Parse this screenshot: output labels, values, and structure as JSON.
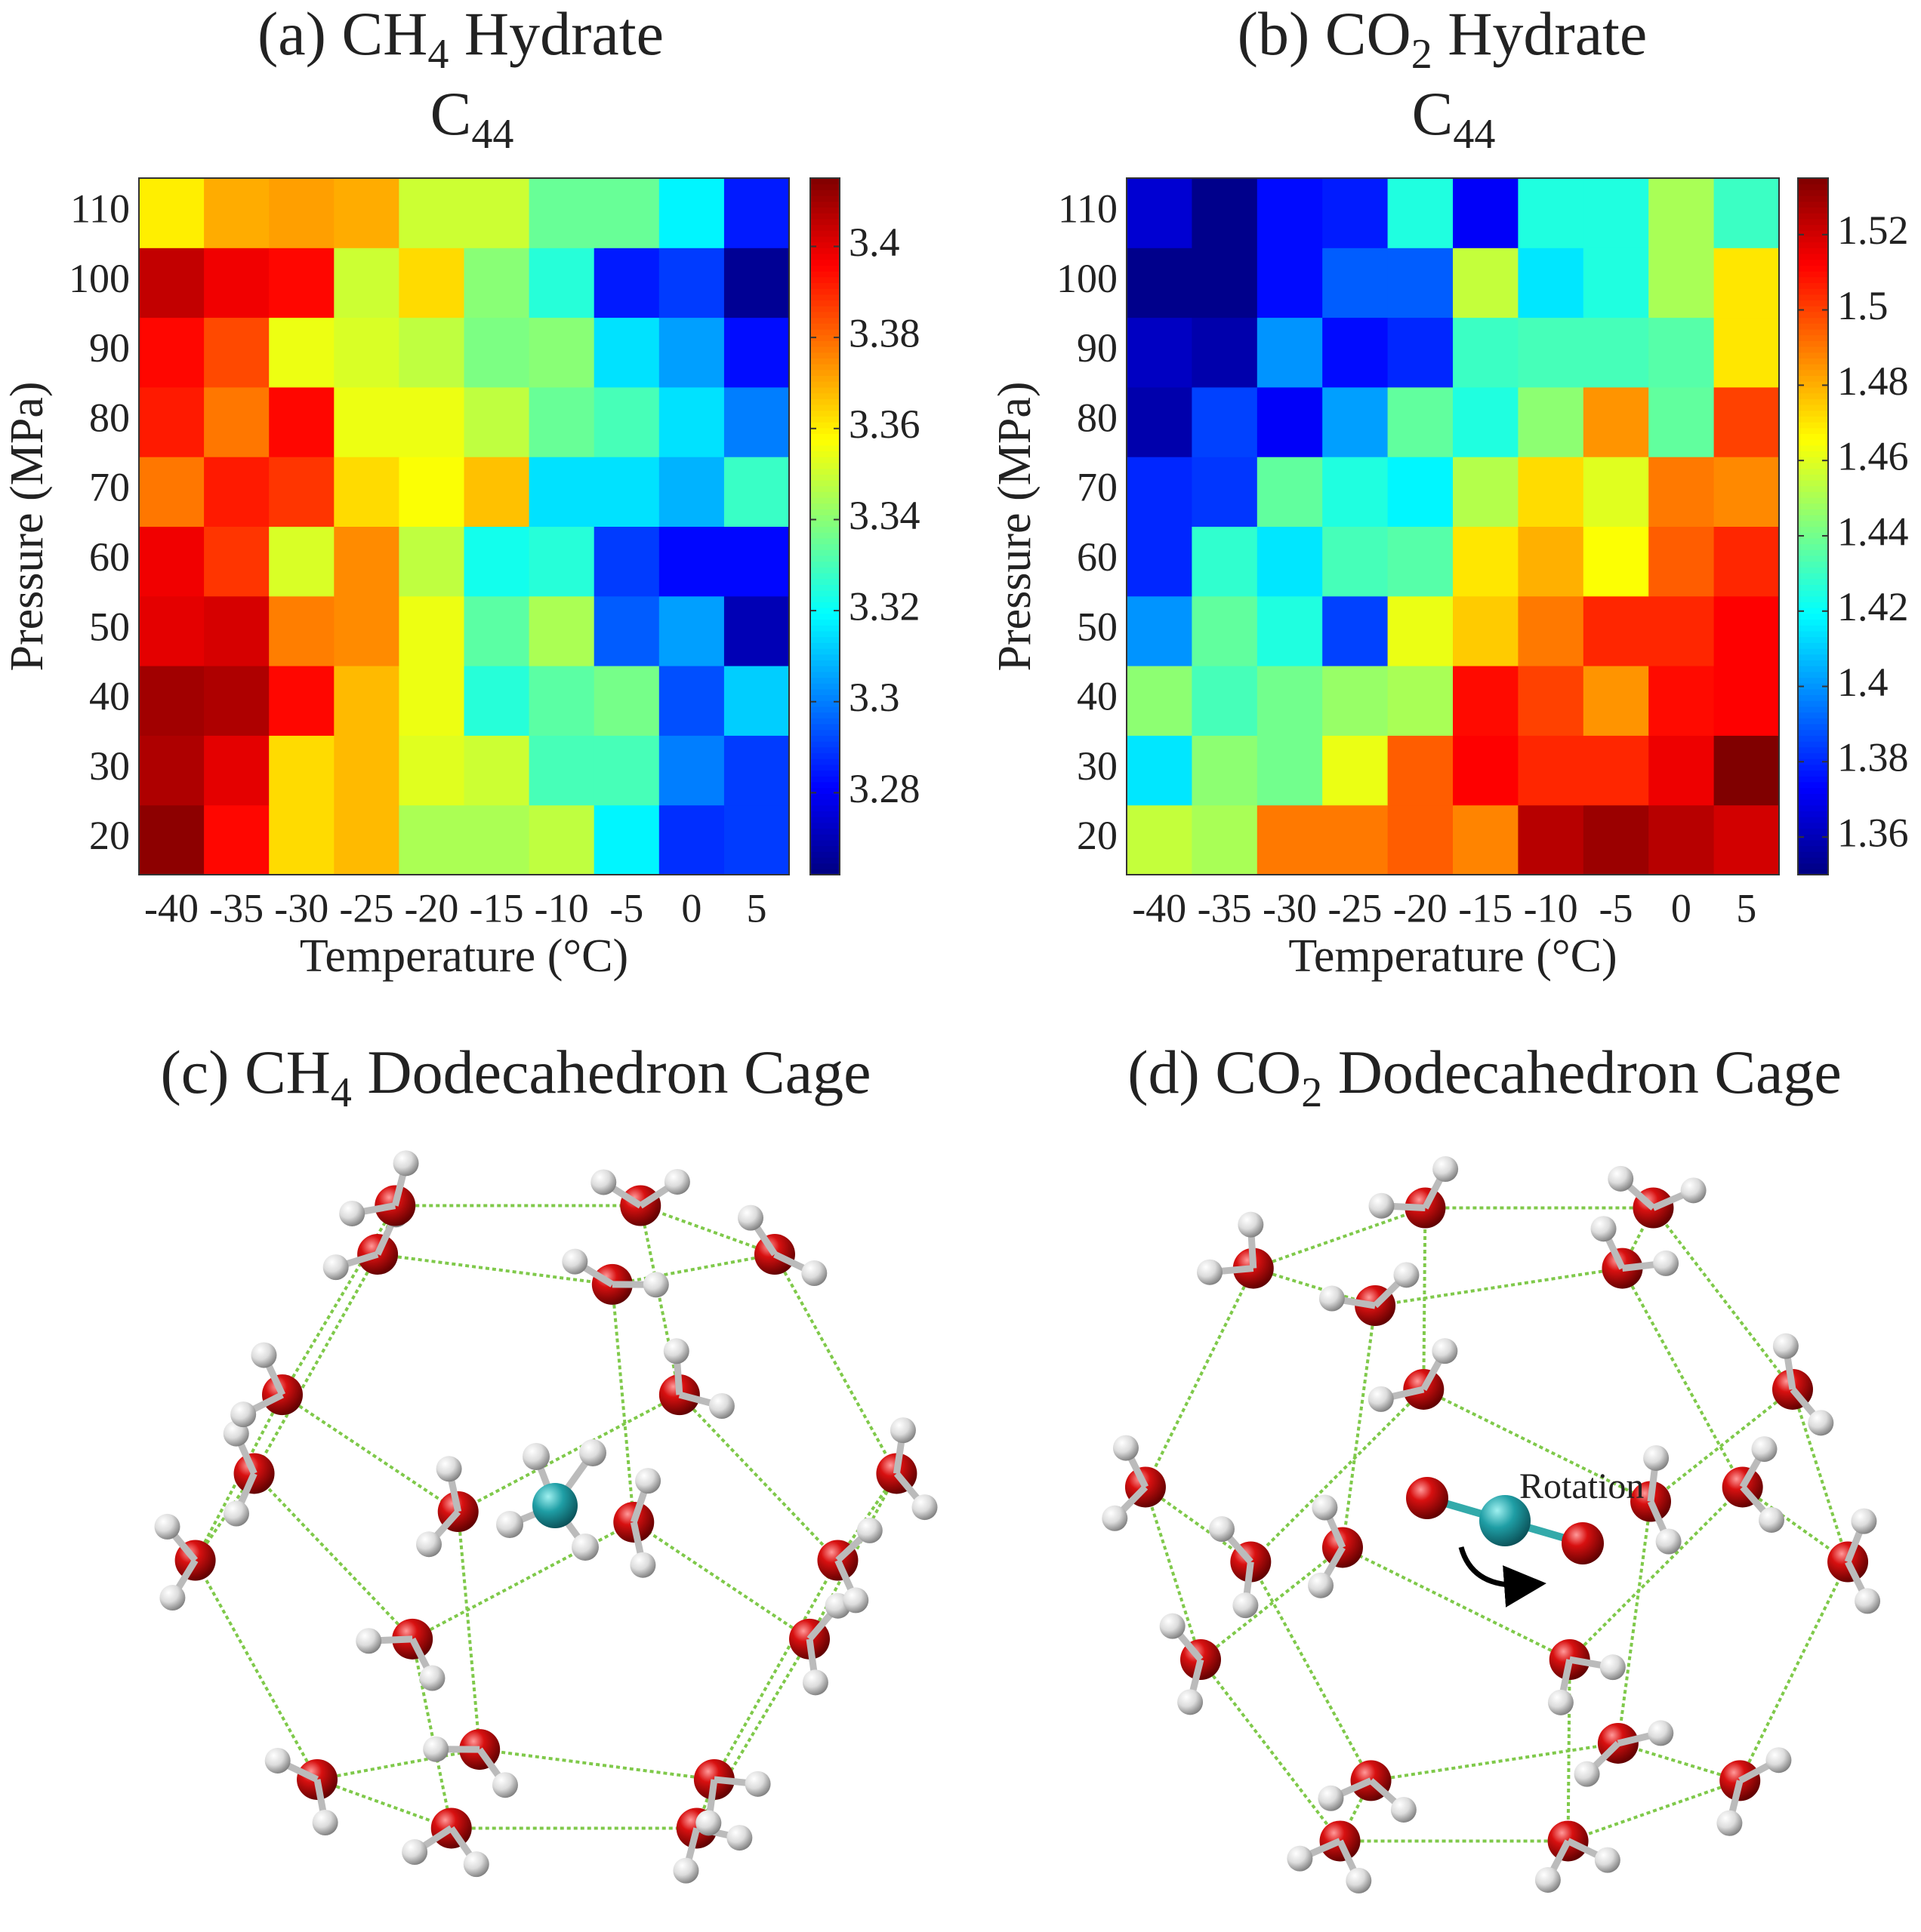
{
  "chart_data": [
    {
      "type": "heatmap",
      "title": {
        "text": "(a) CH",
        "sub": "4",
        "tail": " Hydrate"
      },
      "subtitle": {
        "text": "C",
        "sub": "44"
      },
      "x_label": "Temperature (°C)",
      "y_label": "Pressure (MPa)",
      "x": [
        -40,
        -35,
        -30,
        -25,
        -20,
        -15,
        -10,
        -5,
        0,
        5
      ],
      "y": [
        20,
        30,
        40,
        50,
        60,
        70,
        80,
        90,
        100,
        110
      ],
      "values": [
        [
          3.413,
          3.395,
          3.363,
          3.368,
          3.345,
          3.345,
          3.348,
          3.318,
          3.288,
          3.29
        ],
        [
          3.408,
          3.4,
          3.363,
          3.368,
          3.353,
          3.35,
          3.33,
          3.33,
          3.3,
          3.29
        ],
        [
          3.41,
          3.408,
          3.395,
          3.368,
          3.355,
          3.325,
          3.333,
          3.337,
          3.293,
          3.312
        ],
        [
          3.4,
          3.402,
          3.377,
          3.375,
          3.355,
          3.333,
          3.345,
          3.295,
          3.305,
          3.27
        ],
        [
          3.398,
          3.388,
          3.352,
          3.375,
          3.348,
          3.322,
          3.325,
          3.29,
          3.282,
          3.282
        ],
        [
          3.378,
          3.392,
          3.388,
          3.363,
          3.357,
          3.367,
          3.315,
          3.315,
          3.308,
          3.328
        ],
        [
          3.392,
          3.378,
          3.395,
          3.355,
          3.355,
          3.348,
          3.335,
          3.33,
          3.315,
          3.3
        ],
        [
          3.395,
          3.385,
          3.355,
          3.352,
          3.348,
          3.338,
          3.34,
          3.315,
          3.305,
          3.283
        ],
        [
          3.405,
          3.398,
          3.395,
          3.35,
          3.363,
          3.34,
          3.325,
          3.285,
          3.29,
          3.265
        ],
        [
          3.36,
          3.37,
          3.372,
          3.37,
          3.35,
          3.35,
          3.335,
          3.335,
          3.318,
          3.285
        ]
      ],
      "colormap": "jet",
      "zlim": [
        3.262,
        3.415
      ],
      "zticks": [
        3.28,
        3.3,
        3.32,
        3.34,
        3.36,
        3.38,
        3.4
      ]
    },
    {
      "type": "heatmap",
      "title": {
        "text": "(b) CO",
        "sub": "2",
        "tail": " Hydrate"
      },
      "subtitle": {
        "text": "C",
        "sub": "44"
      },
      "x_label": "Temperature (°C)",
      "y_label": "Pressure (MPa)",
      "x": [
        -40,
        -35,
        -30,
        -25,
        -20,
        -15,
        -10,
        -5,
        0,
        5
      ],
      "y": [
        20,
        30,
        40,
        50,
        60,
        70,
        80,
        90,
        100,
        110
      ],
      "values": [
        [
          1.455,
          1.45,
          1.49,
          1.49,
          1.495,
          1.488,
          1.525,
          1.53,
          1.525,
          1.52
        ],
        [
          1.415,
          1.445,
          1.44,
          1.462,
          1.495,
          1.512,
          1.505,
          1.505,
          1.515,
          1.535
        ],
        [
          1.445,
          1.432,
          1.44,
          1.447,
          1.45,
          1.51,
          1.5,
          1.485,
          1.51,
          1.512
        ],
        [
          1.4,
          1.437,
          1.425,
          1.385,
          1.462,
          1.475,
          1.49,
          1.505,
          1.505,
          1.512
        ],
        [
          1.38,
          1.428,
          1.415,
          1.432,
          1.435,
          1.47,
          1.48,
          1.465,
          1.495,
          1.505
        ],
        [
          1.38,
          1.383,
          1.437,
          1.425,
          1.418,
          1.452,
          1.472,
          1.46,
          1.49,
          1.487
        ],
        [
          1.358,
          1.385,
          1.372,
          1.402,
          1.437,
          1.425,
          1.445,
          1.485,
          1.437,
          1.5
        ],
        [
          1.362,
          1.358,
          1.4,
          1.375,
          1.38,
          1.43,
          1.432,
          1.432,
          1.435,
          1.47
        ],
        [
          1.352,
          1.352,
          1.375,
          1.39,
          1.39,
          1.455,
          1.415,
          1.425,
          1.45,
          1.47
        ],
        [
          1.365,
          1.352,
          1.375,
          1.378,
          1.425,
          1.372,
          1.425,
          1.425,
          1.45,
          1.43
        ]
      ],
      "colormap": "jet",
      "zlim": [
        1.35,
        1.535
      ],
      "zticks": [
        1.36,
        1.38,
        1.4,
        1.42,
        1.44,
        1.46,
        1.48,
        1.5,
        1.52
      ]
    }
  ],
  "diagrams": [
    {
      "title": {
        "text": "(c) CH",
        "sub": "4",
        "tail": " Dodecahedron Cage"
      },
      "guest": "CH4"
    },
    {
      "title": {
        "text": "(d) CO",
        "sub": "2",
        "tail": " Dodecahedron Cage"
      },
      "guest": "CO2",
      "annotation": "Rotation"
    }
  ]
}
